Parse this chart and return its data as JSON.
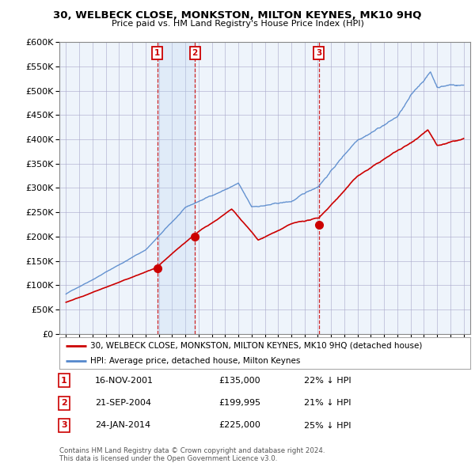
{
  "title": "30, WELBECK CLOSE, MONKSTON, MILTON KEYNES, MK10 9HQ",
  "subtitle": "Price paid vs. HM Land Registry's House Price Index (HPI)",
  "background_color": "#ffffff",
  "plot_background": "#eef4fb",
  "grid_color": "#aaaacc",
  "hpi_line_color": "#5588cc",
  "price_line_color": "#cc0000",
  "shade_color": "#ddeeff",
  "transactions": [
    {
      "num": 1,
      "date": "16-NOV-2001",
      "price": 135000,
      "pct": "22%",
      "dir": "↓",
      "x_year": 2001.88
    },
    {
      "num": 2,
      "date": "21-SEP-2004",
      "price": 199995,
      "pct": "21%",
      "dir": "↓",
      "x_year": 2004.72
    },
    {
      "num": 3,
      "date": "24-JAN-2014",
      "price": 225000,
      "pct": "25%",
      "dir": "↓",
      "x_year": 2014.07
    }
  ],
  "legend_label_price": "30, WELBECK CLOSE, MONKSTON, MILTON KEYNES, MK10 9HQ (detached house)",
  "legend_label_hpi": "HPI: Average price, detached house, Milton Keynes",
  "footnote": "Contains HM Land Registry data © Crown copyright and database right 2024.\nThis data is licensed under the Open Government Licence v3.0.",
  "ylim": [
    0,
    600000
  ],
  "yticks": [
    0,
    50000,
    100000,
    150000,
    200000,
    250000,
    300000,
    350000,
    400000,
    450000,
    500000,
    550000,
    600000
  ],
  "xlim": [
    1994.5,
    2025.5
  ],
  "xticks": [
    1995,
    1996,
    1997,
    1998,
    1999,
    2000,
    2001,
    2002,
    2003,
    2004,
    2005,
    2006,
    2007,
    2008,
    2009,
    2010,
    2011,
    2012,
    2013,
    2014,
    2015,
    2016,
    2017,
    2018,
    2019,
    2020,
    2021,
    2022,
    2023,
    2024,
    2025
  ]
}
